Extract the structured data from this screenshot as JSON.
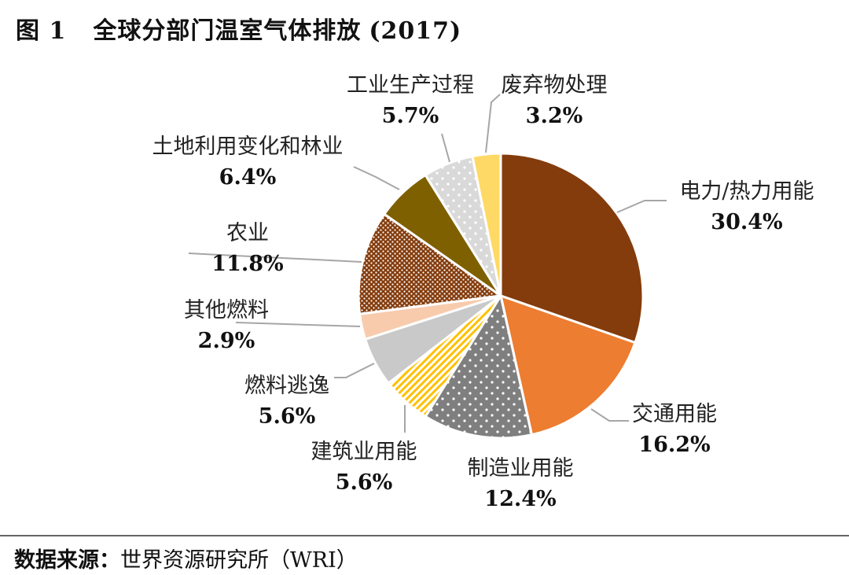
{
  "figure": {
    "number": "图 1",
    "title": "全球分部门温室气体排放",
    "year": "(2017)"
  },
  "source": {
    "label": "数据来源：",
    "text": "世界资源研究所（WRI）"
  },
  "chart_data": {
    "type": "pie",
    "start_angle_deg": 0,
    "direction": "clockwise",
    "slices": [
      {
        "name": "电力/热力用能",
        "value": 30.4,
        "label": "30.4%",
        "color": "#843C0C",
        "pattern": "none"
      },
      {
        "name": "交通用能",
        "value": 16.2,
        "label": "16.2%",
        "color": "#ED7D31",
        "pattern": "none"
      },
      {
        "name": "制造业用能",
        "value": 12.4,
        "label": "12.4%",
        "color": "#7F7F7F",
        "pattern": "white-dots"
      },
      {
        "name": "建筑业用能",
        "value": 5.6,
        "label": "5.6%",
        "color": "#FFC000",
        "pattern": "diagonal-stripes"
      },
      {
        "name": "燃料逃逸",
        "value": 5.6,
        "label": "5.6%",
        "color": "#C9C9C9",
        "pattern": "none"
      },
      {
        "name": "其他燃料",
        "value": 2.9,
        "label": "2.9%",
        "color": "#F8CBAD",
        "pattern": "none"
      },
      {
        "name": "农业",
        "value": 11.8,
        "label": "11.8%",
        "color": "#843C0C",
        "pattern": "white-dots-dense"
      },
      {
        "name": "土地利用变化和林业",
        "value": 6.4,
        "label": "6.4%",
        "color": "#7F6000",
        "pattern": "none"
      },
      {
        "name": "工业生产过程",
        "value": 5.7,
        "label": "5.7%",
        "color": "#D9D9D9",
        "pattern": "white-dots"
      },
      {
        "name": "废弃物处理",
        "value": 3.2,
        "label": "3.2%",
        "color": "#FFD966",
        "pattern": "none"
      }
    ]
  }
}
